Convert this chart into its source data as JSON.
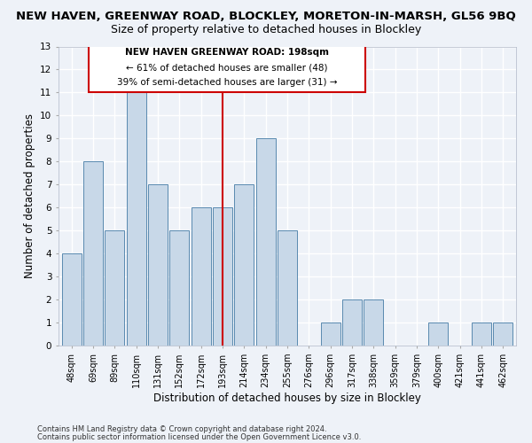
{
  "title": "NEW HAVEN, GREENWAY ROAD, BLOCKLEY, MORETON-IN-MARSH, GL56 9BQ",
  "subtitle": "Size of property relative to detached houses in Blockley",
  "xlabel": "Distribution of detached houses by size in Blockley",
  "ylabel": "Number of detached properties",
  "categories": [
    "48sqm",
    "69sqm",
    "89sqm",
    "110sqm",
    "131sqm",
    "152sqm",
    "172sqm",
    "193sqm",
    "214sqm",
    "234sqm",
    "255sqm",
    "276sqm",
    "296sqm",
    "317sqm",
    "338sqm",
    "359sqm",
    "379sqm",
    "400sqm",
    "421sqm",
    "441sqm",
    "462sqm"
  ],
  "values": [
    4,
    8,
    5,
    11,
    7,
    5,
    6,
    6,
    7,
    9,
    5,
    0,
    1,
    2,
    2,
    0,
    0,
    1,
    0,
    1,
    1
  ],
  "bar_color": "#c8d8e8",
  "bar_edge_color": "#5a8ab0",
  "marker_index": 7,
  "marker_line_color": "#cc0000",
  "annotation_line1": "NEW HAVEN GREENWAY ROAD: 198sqm",
  "annotation_line2": "← 61% of detached houses are smaller (48)",
  "annotation_line3": "39% of semi-detached houses are larger (31) →",
  "ylim": [
    0,
    13
  ],
  "yticks": [
    0,
    1,
    2,
    3,
    4,
    5,
    6,
    7,
    8,
    9,
    10,
    11,
    12,
    13
  ],
  "footer1": "Contains HM Land Registry data © Crown copyright and database right 2024.",
  "footer2": "Contains public sector information licensed under the Open Government Licence v3.0.",
  "background_color": "#eef2f8",
  "grid_color": "#ffffff",
  "title_fontsize": 9.5,
  "subtitle_fontsize": 9,
  "tick_fontsize": 7,
  "ylabel_fontsize": 8.5,
  "xlabel_fontsize": 8.5,
  "footer_fontsize": 6,
  "annot_fontsize": 7.5
}
